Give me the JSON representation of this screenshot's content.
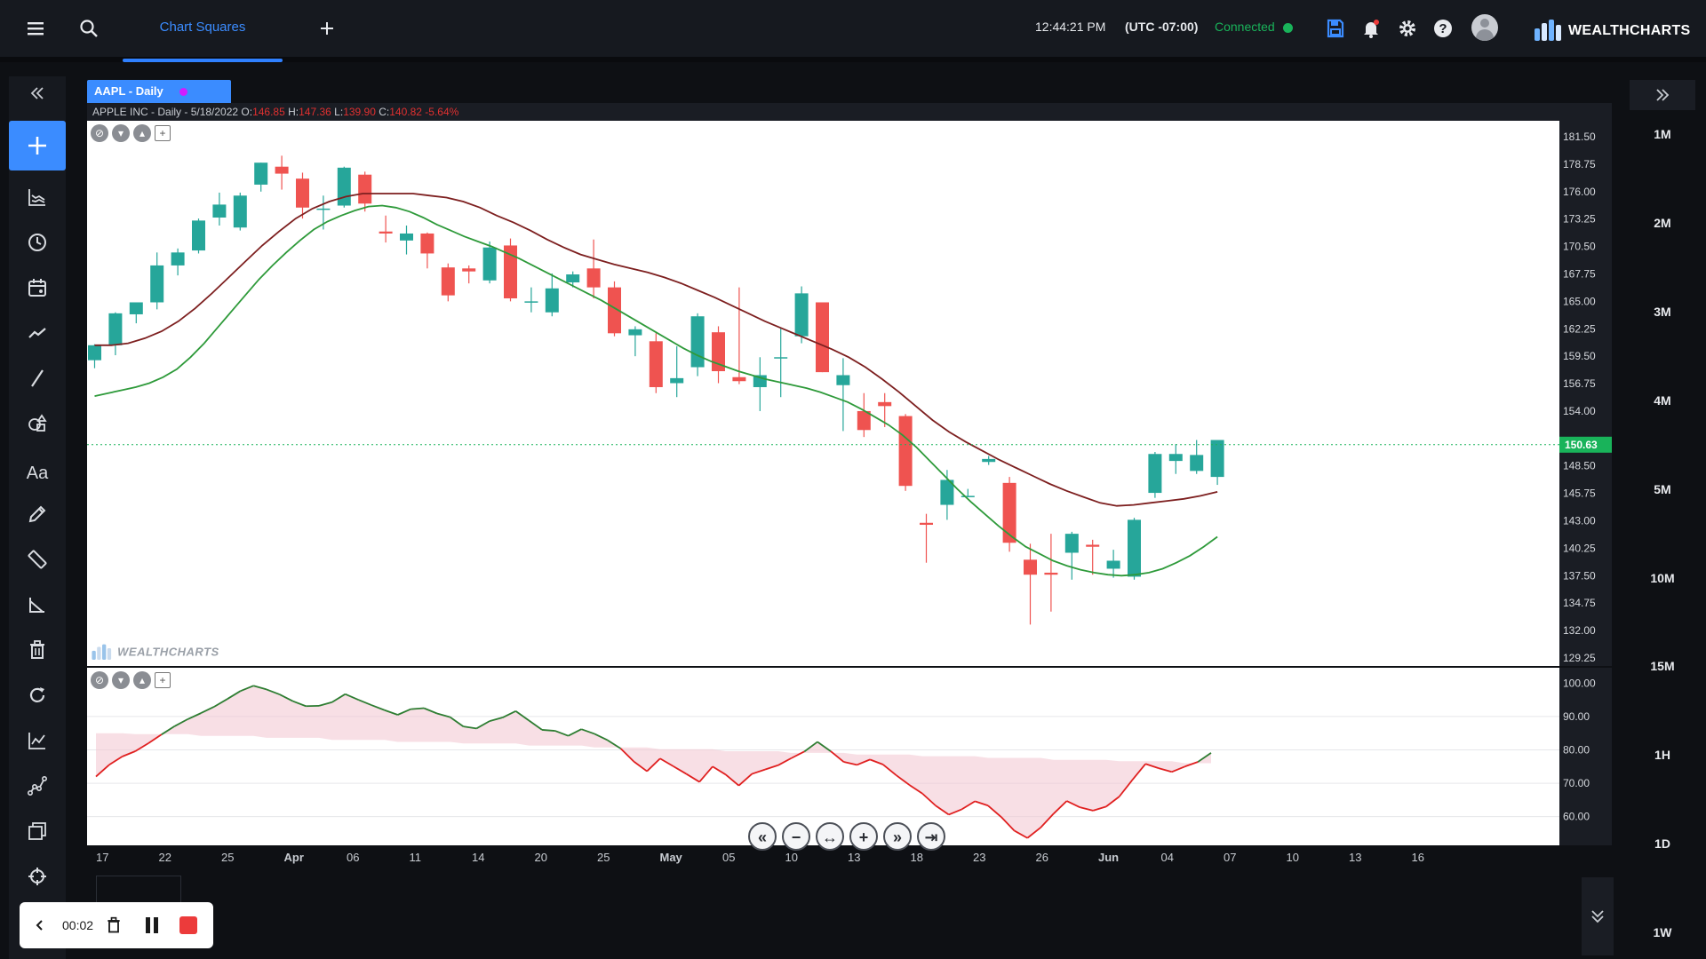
{
  "topbar": {
    "menu_icon": "hamburger-icon",
    "search_icon": "search-icon",
    "active_tab": "Chart Squares",
    "add_tab_icon": "plus-icon",
    "time": "12:44:21 PM",
    "timezone": "(UTC -07:00)",
    "connection_status": "Connected",
    "brand": "WEALTHCHARTS",
    "icons": [
      "save-icon",
      "bell-icon",
      "gear-icon",
      "help-icon",
      "avatar-icon"
    ]
  },
  "left_toolbar": {
    "collapse_icon": "double-chevron-left-icon",
    "add_icon": "plus-icon",
    "tools": [
      "chart-type-icon",
      "clock-icon",
      "calendar-icon",
      "trend-icon",
      "line-draw-icon",
      "shapes-icon",
      "text-icon",
      "pencil-icon",
      "ruler-icon",
      "angle-icon",
      "trash-icon",
      "refresh-icon",
      "chart-line-icon",
      "network-icon",
      "layers-icon",
      "crosshair-icon"
    ],
    "text_tool_label": "Aa"
  },
  "right_toolbar": {
    "collapse_icon": "double-chevron-right-icon",
    "timeframes": [
      "1M",
      "2M",
      "3M",
      "4M",
      "5M",
      "10M",
      "15M",
      "1H",
      "1D",
      "1W"
    ],
    "down_icon": "double-chevron-down-icon"
  },
  "chart": {
    "tab_label": "AAPL - Daily",
    "ohlc_prefix": "APPLE INC - Daily - 5/18/2022 O:",
    "open": "146.85",
    "high_label": "H:",
    "high": "147.36",
    "low_label": "L:",
    "low": "139.90",
    "close_label": "C:",
    "close": "140.82",
    "change": "-5.64%",
    "watermark": "WEALTHCHARTS",
    "last_price": "150.63"
  },
  "recorder": {
    "elapsed": "00:02",
    "back_icon": "chevron-left-icon",
    "delete_icon": "trash-icon",
    "pause_icon": "pause-icon",
    "stop_icon": "stop-icon"
  },
  "chart_data": [
    {
      "type": "candlestick",
      "y_ticks": [
        "181.50",
        "178.75",
        "176.00",
        "173.25",
        "170.50",
        "167.75",
        "165.00",
        "162.25",
        "159.50",
        "156.75",
        "154.00",
        "148.50",
        "145.75",
        "143.00",
        "140.25",
        "137.50",
        "134.75",
        "132.00",
        "129.25"
      ],
      "ylim": [
        129.25,
        181.5
      ],
      "x_ticks": [
        "17",
        "22",
        "25",
        "Apr",
        "06",
        "11",
        "14",
        "20",
        "25",
        "May",
        "05",
        "10",
        "13",
        "18",
        "23",
        "26",
        "Jun",
        "04",
        "07",
        "10",
        "13",
        "16"
      ],
      "candles": [
        {
          "o": 159.1,
          "h": 160.7,
          "l": 158.3,
          "c": 160.6
        },
        {
          "o": 160.6,
          "h": 163.9,
          "l": 159.6,
          "c": 163.8
        },
        {
          "o": 163.7,
          "h": 164.9,
          "l": 162.8,
          "c": 164.9
        },
        {
          "o": 164.9,
          "h": 169.9,
          "l": 164.2,
          "c": 168.6
        },
        {
          "o": 168.6,
          "h": 170.3,
          "l": 167.6,
          "c": 169.9
        },
        {
          "o": 170.1,
          "h": 173.3,
          "l": 169.8,
          "c": 173.1
        },
        {
          "o": 173.4,
          "h": 175.9,
          "l": 172.6,
          "c": 174.7
        },
        {
          "o": 172.4,
          "h": 175.9,
          "l": 172.1,
          "c": 175.6
        },
        {
          "o": 176.7,
          "h": 178.9,
          "l": 176.0,
          "c": 178.9
        },
        {
          "o": 178.5,
          "h": 179.6,
          "l": 176.2,
          "c": 177.8
        },
        {
          "o": 177.3,
          "h": 177.9,
          "l": 173.3,
          "c": 174.4
        },
        {
          "o": 174.2,
          "h": 175.6,
          "l": 172.2,
          "c": 174.3
        },
        {
          "o": 174.6,
          "h": 178.5,
          "l": 174.4,
          "c": 178.4
        },
        {
          "o": 177.7,
          "h": 178.0,
          "l": 174.0,
          "c": 174.8
        },
        {
          "o": 172.0,
          "h": 173.6,
          "l": 170.9,
          "c": 171.8
        },
        {
          "o": 171.1,
          "h": 172.6,
          "l": 169.7,
          "c": 171.8
        },
        {
          "o": 171.8,
          "h": 171.9,
          "l": 168.3,
          "c": 169.8
        },
        {
          "o": 168.4,
          "h": 168.8,
          "l": 165.0,
          "c": 165.6
        },
        {
          "o": 168.3,
          "h": 168.6,
          "l": 166.8,
          "c": 168.0
        },
        {
          "o": 167.1,
          "h": 171.0,
          "l": 166.8,
          "c": 170.4
        },
        {
          "o": 170.6,
          "h": 171.3,
          "l": 165.0,
          "c": 165.3
        },
        {
          "o": 165.0,
          "h": 166.4,
          "l": 163.9,
          "c": 165.0
        },
        {
          "o": 163.9,
          "h": 167.8,
          "l": 163.5,
          "c": 166.3
        },
        {
          "o": 166.9,
          "h": 168.0,
          "l": 166.4,
          "c": 167.7
        },
        {
          "o": 168.3,
          "h": 171.2,
          "l": 165.3,
          "c": 166.4
        },
        {
          "o": 166.4,
          "h": 167.0,
          "l": 161.5,
          "c": 161.8
        },
        {
          "o": 161.6,
          "h": 162.5,
          "l": 159.5,
          "c": 162.2
        },
        {
          "o": 161.0,
          "h": 161.8,
          "l": 155.8,
          "c": 156.4
        },
        {
          "o": 156.8,
          "h": 160.5,
          "l": 155.4,
          "c": 157.3
        },
        {
          "o": 158.4,
          "h": 163.8,
          "l": 157.5,
          "c": 163.5
        },
        {
          "o": 161.9,
          "h": 162.5,
          "l": 156.8,
          "c": 158.0
        },
        {
          "o": 157.4,
          "h": 166.4,
          "l": 156.7,
          "c": 157.0
        },
        {
          "o": 156.4,
          "h": 159.4,
          "l": 154.0,
          "c": 157.6
        },
        {
          "o": 159.3,
          "h": 162.4,
          "l": 155.4,
          "c": 159.4
        },
        {
          "o": 161.5,
          "h": 166.5,
          "l": 160.8,
          "c": 165.8
        },
        {
          "o": 164.9,
          "h": 164.9,
          "l": 157.9,
          "c": 157.9
        },
        {
          "o": 156.6,
          "h": 159.3,
          "l": 152.0,
          "c": 157.6
        },
        {
          "o": 154.0,
          "h": 155.8,
          "l": 151.4,
          "c": 152.1
        },
        {
          "o": 154.9,
          "h": 155.8,
          "l": 152.4,
          "c": 154.5
        },
        {
          "o": 153.5,
          "h": 153.7,
          "l": 146.0,
          "c": 146.5
        },
        {
          "o": 142.8,
          "h": 143.7,
          "l": 138.8,
          "c": 142.6
        },
        {
          "o": 144.6,
          "h": 148.1,
          "l": 143.1,
          "c": 147.1
        },
        {
          "o": 145.5,
          "h": 146.2,
          "l": 145.4,
          "c": 145.5
        },
        {
          "o": 148.9,
          "h": 149.5,
          "l": 148.6,
          "c": 149.2
        },
        {
          "o": 146.8,
          "h": 147.4,
          "l": 139.9,
          "c": 140.8
        },
        {
          "o": 139.1,
          "h": 140.7,
          "l": 132.6,
          "c": 137.6
        },
        {
          "o": 137.8,
          "h": 141.7,
          "l": 133.9,
          "c": 137.6
        },
        {
          "o": 139.8,
          "h": 141.9,
          "l": 137.1,
          "c": 141.7
        },
        {
          "o": 140.6,
          "h": 141.1,
          "l": 137.6,
          "c": 140.4
        },
        {
          "o": 138.2,
          "h": 140.1,
          "l": 137.3,
          "c": 139.0
        },
        {
          "o": 137.4,
          "h": 143.3,
          "l": 137.1,
          "c": 143.1
        },
        {
          "o": 145.8,
          "h": 149.9,
          "l": 145.3,
          "c": 149.7
        },
        {
          "o": 149.0,
          "h": 150.7,
          "l": 147.7,
          "c": 149.7
        },
        {
          "o": 148.0,
          "h": 151.1,
          "l": 147.7,
          "c": 149.6
        },
        {
          "o": 147.4,
          "h": 151.0,
          "l": 146.6,
          "c": 151.1
        }
      ],
      "ma_dark_red": [
        160.6,
        160.6,
        160.8,
        161.3,
        162.0,
        163.0,
        164.3,
        165.8,
        167.4,
        169.0,
        170.6,
        172.0,
        173.3,
        174.3,
        175.0,
        175.5,
        175.8,
        175.8,
        175.8,
        175.8,
        175.6,
        175.4,
        175.0,
        174.4,
        173.6,
        172.9,
        172.1,
        171.2,
        170.4,
        169.7,
        169.2,
        168.7,
        168.3,
        167.9,
        167.4,
        166.8,
        166.1,
        165.4,
        164.6,
        163.8,
        163.0,
        162.3,
        161.6,
        160.9,
        160.2,
        159.4,
        158.4,
        157.2,
        155.9,
        154.5,
        153.1,
        151.9,
        150.9,
        150.0,
        149.1,
        148.3,
        147.5,
        146.7,
        146.0,
        145.4,
        144.8,
        144.5,
        144.6,
        144.8,
        145.0,
        145.2,
        145.5,
        145.9
      ],
      "ma_green": [
        155.5,
        155.8,
        156.1,
        156.4,
        156.8,
        157.4,
        158.2,
        159.4,
        160.8,
        162.4,
        164.0,
        165.6,
        167.2,
        168.6,
        169.9,
        171.1,
        172.2,
        173.0,
        173.6,
        174.1,
        174.5,
        174.6,
        174.4,
        174.0,
        173.4,
        172.7,
        172.1,
        171.5,
        171.0,
        170.5,
        169.9,
        169.3,
        168.6,
        167.9,
        167.2,
        166.5,
        165.8,
        165.1,
        164.3,
        163.5,
        162.7,
        161.9,
        161.1,
        160.3,
        159.6,
        159.0,
        158.5,
        158.0,
        157.6,
        157.2,
        156.9,
        156.6,
        156.3,
        155.9,
        155.4,
        154.9,
        154.2,
        153.4,
        152.6,
        151.6,
        150.4,
        149.0,
        147.6,
        146.2,
        144.9,
        143.7,
        142.5,
        141.4,
        140.4,
        139.7,
        139.0,
        138.5,
        138.1,
        137.8,
        137.6,
        137.5,
        137.6,
        137.8,
        138.2,
        138.8,
        139.5,
        140.4,
        141.4
      ],
      "last_price_line": 150.63
    },
    {
      "type": "line",
      "y_ticks": [
        "100.00",
        "90.00",
        "80.00",
        "70.00",
        "60.00"
      ],
      "ylim": [
        53,
        103
      ],
      "values": [
        72.0,
        75.5,
        78.0,
        79.6,
        82.0,
        84.6,
        87.1,
        89.2,
        91.0,
        92.9,
        95.2,
        97.6,
        99.2,
        98.1,
        96.6,
        94.6,
        93.1,
        93.2,
        94.3,
        96.7,
        95.0,
        93.4,
        91.9,
        90.5,
        92.2,
        92.5,
        90.9,
        89.8,
        87.0,
        86.4,
        88.6,
        89.7,
        91.6,
        88.8,
        86.0,
        85.7,
        84.2,
        86.2,
        84.8,
        82.9,
        80.4,
        76.5,
        73.6,
        77.4,
        75.1,
        72.8,
        70.4,
        75.0,
        72.6,
        69.3,
        72.8,
        74.1,
        75.4,
        77.5,
        79.5,
        82.4,
        79.6,
        76.4,
        75.5,
        77.1,
        75.6,
        72.4,
        69.5,
        66.9,
        63.3,
        60.6,
        62.2,
        64.6,
        63.3,
        59.9,
        55.8,
        53.6,
        56.7,
        60.9,
        64.7,
        62.8,
        61.8,
        63.0,
        66.0,
        71.0,
        75.8,
        74.5,
        73.4,
        75.0,
        76.4,
        79.1
      ],
      "shade_upper": [
        85,
        84.7,
        84.2,
        83.6,
        83.0,
        82.4,
        81.9,
        81.3,
        80.7,
        80.2,
        79.6,
        79.1,
        78.6,
        78.1,
        77.6,
        77.0,
        76.6,
        76.0
      ]
    }
  ]
}
